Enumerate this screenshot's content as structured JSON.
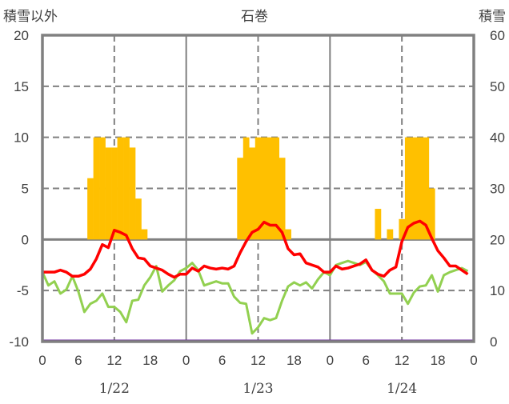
{
  "chart_data": {
    "type": "bar+line",
    "title": "石巻",
    "left_axis_label": "積雪以外",
    "right_axis_label": "積雪",
    "ylim_left": [
      -10,
      20
    ],
    "ylim_right": [
      0,
      60
    ],
    "left_ticks": [
      "20",
      "15",
      "10",
      "5",
      "0",
      "-5",
      "-10"
    ],
    "right_ticks": [
      "60",
      "50",
      "40",
      "30",
      "20",
      "10",
      "0"
    ],
    "x_hour_ticks": [
      "0",
      "6",
      "12",
      "18"
    ],
    "x_final_tick": "0",
    "days": [
      "1/22",
      "1/23",
      "1/24"
    ],
    "colors": {
      "bars": "#FFC000",
      "red": "#FF0000",
      "green": "#92D050",
      "snow": "#7030A0",
      "frame": "#808080"
    },
    "bars": [
      [
        0,
        0,
        0,
        0,
        0,
        0,
        0,
        0,
        6,
        10,
        10,
        9,
        9,
        10,
        10,
        9,
        4,
        1,
        0,
        0,
        0,
        0,
        0,
        0
      ],
      [
        0,
        0,
        0,
        0,
        0,
        0,
        0,
        0,
        0,
        8,
        10,
        9,
        10,
        10,
        10,
        10,
        8,
        1,
        0,
        0,
        0,
        0,
        0,
        0
      ],
      [
        0,
        0,
        0,
        0,
        0,
        0,
        0,
        0,
        3,
        0,
        1,
        0,
        2,
        10,
        10,
        10,
        10,
        5,
        0,
        0,
        0,
        0,
        0,
        0
      ]
    ],
    "red_series": [
      -3.2,
      -3.2,
      -3.2,
      -3.0,
      -3.2,
      -3.6,
      -3.6,
      -3.4,
      -2.9,
      -1.9,
      -0.5,
      -0.8,
      0.9,
      0.7,
      0.4,
      -0.9,
      -1.8,
      -1.9,
      -2.6,
      -2.8,
      -3.0,
      -3.4,
      -3.7,
      -3.4,
      -3.4,
      -2.8,
      -3.1,
      -2.6,
      -2.8,
      -2.9,
      -2.8,
      -2.9,
      -2.6,
      -1.3,
      -0.2,
      0.7,
      1.0,
      1.7,
      1.4,
      1.4,
      0.7,
      -0.9,
      -1.5,
      -1.4,
      -2.3,
      -2.5,
      -2.7,
      -3.2,
      -3.2,
      -2.6,
      -2.9,
      -2.8,
      -2.6,
      -2.4,
      -2.0,
      -3.0,
      -3.4,
      -3.6,
      -3.0,
      -2.7,
      -0.2,
      1.2,
      1.6,
      1.8,
      1.4,
      0.1,
      -1.1,
      -1.8,
      -2.6,
      -2.6,
      -3.0,
      -3.4
    ],
    "green_series": [
      -3.2,
      -4.5,
      -4.1,
      -5.3,
      -4.9,
      -3.6,
      -5.1,
      -7.1,
      -6.3,
      -6.0,
      -5.3,
      -6.6,
      -6.6,
      -7.1,
      -8.1,
      -6.0,
      -5.9,
      -4.5,
      -3.7,
      -2.6,
      -5.1,
      -4.5,
      -4.0,
      -3.1,
      -2.8,
      -2.3,
      -3.0,
      -4.5,
      -4.3,
      -4.1,
      -4.3,
      -4.3,
      -5.6,
      -6.2,
      -6.3,
      -9.2,
      -8.6,
      -7.7,
      -7.9,
      -7.7,
      -6.0,
      -4.6,
      -4.2,
      -4.5,
      -4.2,
      -4.8,
      -3.9,
      -3.2,
      -3.5,
      -2.5,
      -2.3,
      -2.1,
      -2.3,
      -2.5,
      -2.2,
      -3.0,
      -3.5,
      -4.1,
      -5.3,
      -5.3,
      -5.3,
      -6.3,
      -5.2,
      -4.6,
      -4.5,
      -3.5,
      -5.1,
      -3.5,
      -3.2,
      -3.0,
      -2.8,
      -3.1
    ],
    "snow_depth_right": 0
  }
}
